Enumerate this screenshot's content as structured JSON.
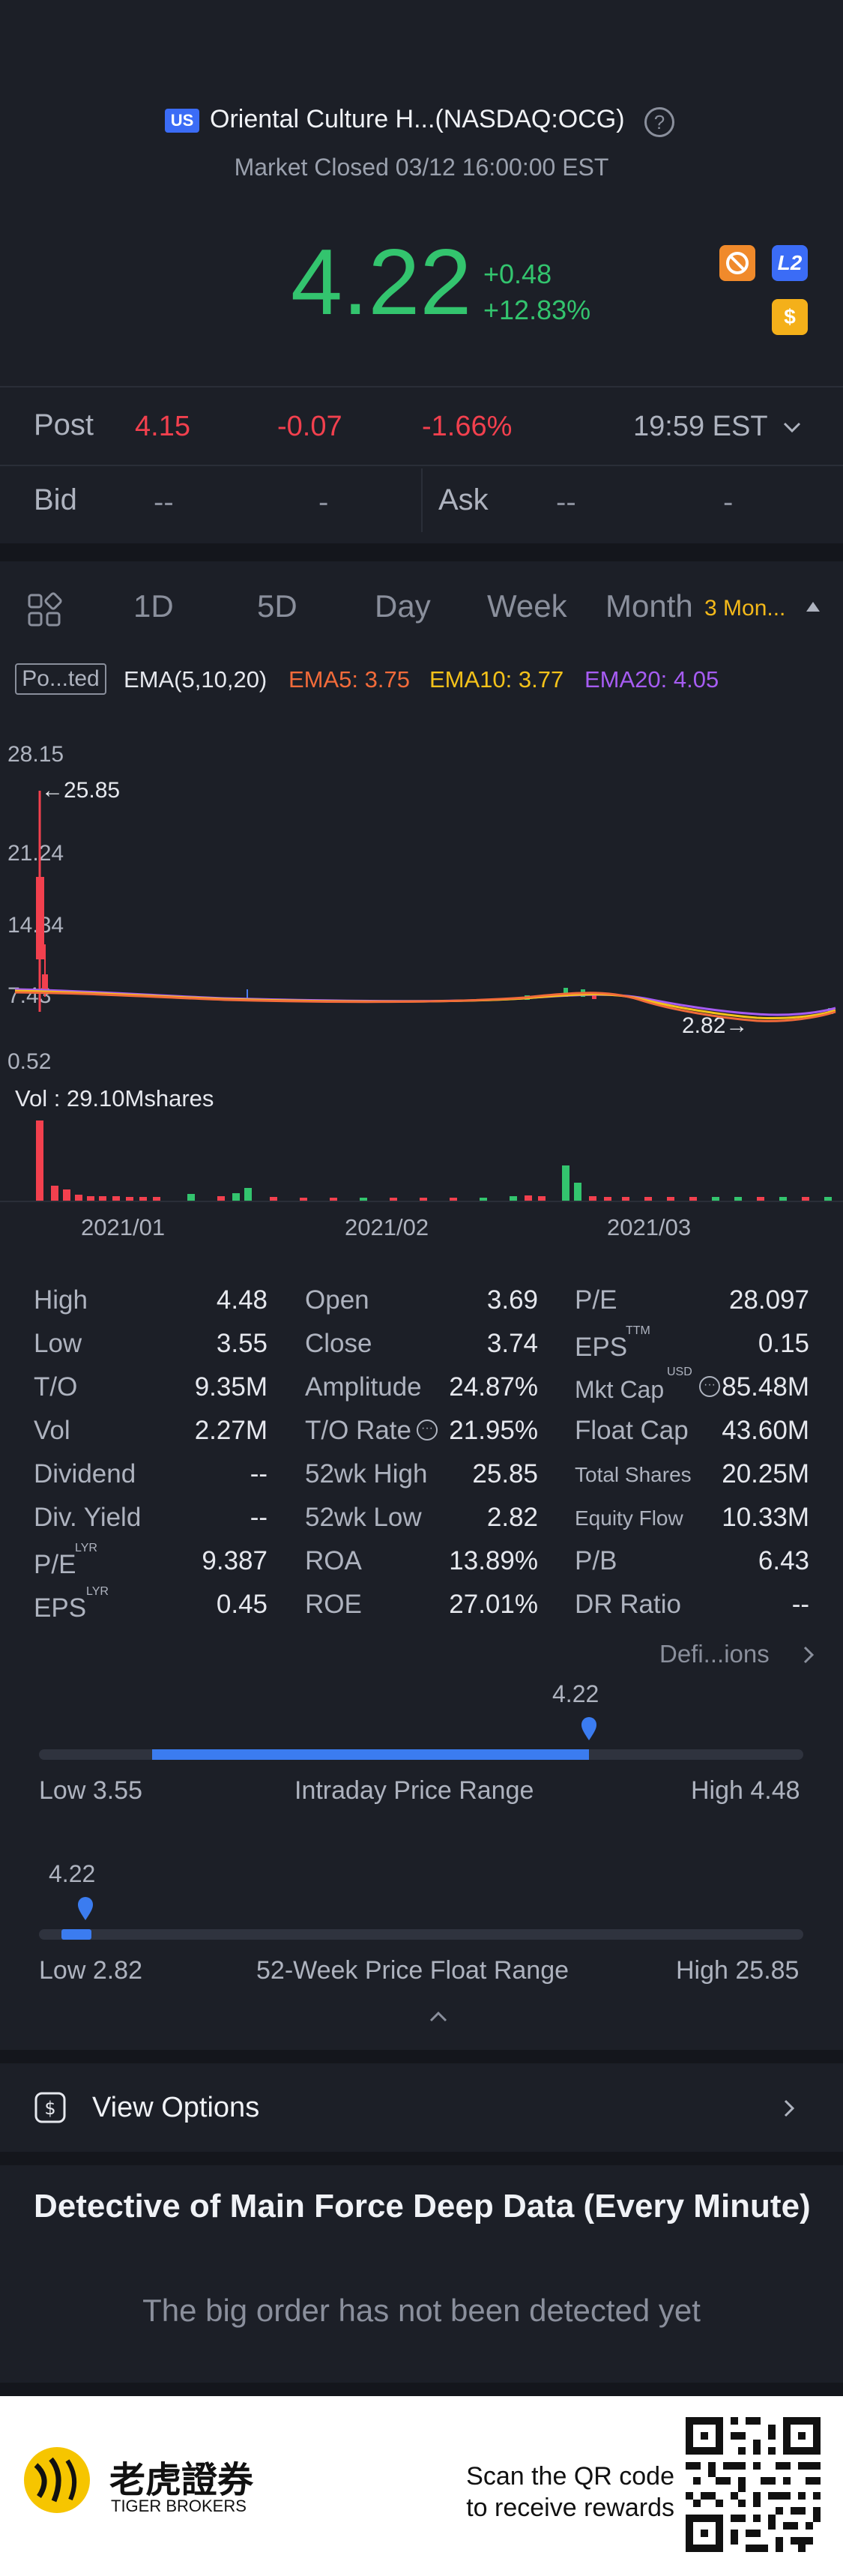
{
  "header": {
    "market_badge": "US",
    "title": "Oriental Culture H...(NASDAQ:OCG)",
    "help_glyph": "?",
    "status": "Market Closed 03/12 16:00:00 EST",
    "price": "4.22",
    "change": "+0.48",
    "change_pct": "+12.83%",
    "icons": [
      {
        "name": "no-sign-icon",
        "color": "#f08a2b"
      },
      {
        "name": "level2-icon",
        "label": "L2",
        "color": "#3b6cf6"
      },
      {
        "name": "dollar-icon",
        "label": "$",
        "color": "#f4b01a"
      }
    ]
  },
  "post": {
    "label": "Post",
    "price": "4.15",
    "change": "-0.07",
    "change_pct": "-1.66%",
    "time": "19:59 EST"
  },
  "bid": {
    "label": "Bid",
    "bid_price": "--",
    "bid_size": "-",
    "ask_label": "Ask",
    "ask_price": "--",
    "ask_size": "-"
  },
  "tabs": {
    "items": [
      "1D",
      "5D",
      "Day",
      "Week",
      "Month"
    ],
    "active": "3 Mon..."
  },
  "indicator": {
    "tag": "Po...ted",
    "ema": "EMA(5,10,20)",
    "ema5": "EMA5: 3.75",
    "ema10": "EMA10: 3.77",
    "ema20": "EMA20: 4.05",
    "colors": {
      "ema5": "#f26b3a",
      "ema10": "#f4c21a",
      "ema20": "#a65cf2"
    }
  },
  "chart_data": {
    "type": "candlestick",
    "y_ticks": [
      "28.15",
      "21.24",
      "14.34",
      "7.43",
      "0.52"
    ],
    "annotations": {
      "high": "25.85",
      "low": "2.82"
    },
    "x_ticks": [
      "2021/01",
      "2021/02",
      "2021/03"
    ],
    "volume_label": "Vol : 29.10Mshares",
    "ylim": [
      0.52,
      28.15
    ]
  },
  "stats": {
    "col1": [
      {
        "label": "High",
        "value": "4.48"
      },
      {
        "label": "Low",
        "value": "3.55"
      },
      {
        "label": "T/O",
        "value": "9.35M"
      },
      {
        "label": "Vol",
        "value": "2.27M"
      },
      {
        "label": "Dividend",
        "value": "--"
      },
      {
        "label": "Div. Yield",
        "value": "--"
      },
      {
        "label": "P/E",
        "sup": "LYR",
        "value": "9.387"
      },
      {
        "label": "EPS",
        "sup": "LYR",
        "value": "0.45"
      }
    ],
    "col2": [
      {
        "label": "Open",
        "value": "3.69"
      },
      {
        "label": "Close",
        "value": "3.74"
      },
      {
        "label": "Amplitude",
        "value": "24.87%"
      },
      {
        "label": "T/O Rate",
        "value": "21.95%"
      },
      {
        "label": "52wk High",
        "value": "25.85"
      },
      {
        "label": "52wk Low",
        "value": "2.82"
      },
      {
        "label": "ROA",
        "value": "13.89%"
      },
      {
        "label": "ROE",
        "value": "27.01%"
      }
    ],
    "col3": [
      {
        "label": "P/E",
        "value": "28.097"
      },
      {
        "label": "EPS",
        "sup": "TTM",
        "value": "0.15"
      },
      {
        "label": "Mkt Cap",
        "sup": "USD",
        "value": "85.48M"
      },
      {
        "label": "Float Cap",
        "value": "43.60M"
      },
      {
        "label": "Total Shares",
        "value": "20.25M"
      },
      {
        "label": "Equity Flow",
        "value": "10.33M"
      },
      {
        "label": "P/B",
        "value": "6.43"
      },
      {
        "label": "DR Ratio",
        "value": "--"
      }
    ],
    "definitions_link": "Defi...ions"
  },
  "intraday": {
    "marker": "4.22",
    "low": "Low 3.55",
    "title": "Intraday Price Range",
    "high": "High 4.48",
    "level": 0.72
  },
  "week52": {
    "marker": "4.22",
    "low": "Low 2.82",
    "title": "52-Week Price Float Range",
    "high": "High 25.85",
    "level": 0.06
  },
  "options": {
    "label": "View Options"
  },
  "detective": {
    "title": "Detective of Main Force Deep Data (Every Minute)",
    "empty": "The big order has not been detected yet"
  },
  "footer": {
    "brand_cn": "老虎證券",
    "brand_en": "TIGER BROKERS",
    "line1": "Scan the QR code",
    "line2": "to receive rewards"
  }
}
